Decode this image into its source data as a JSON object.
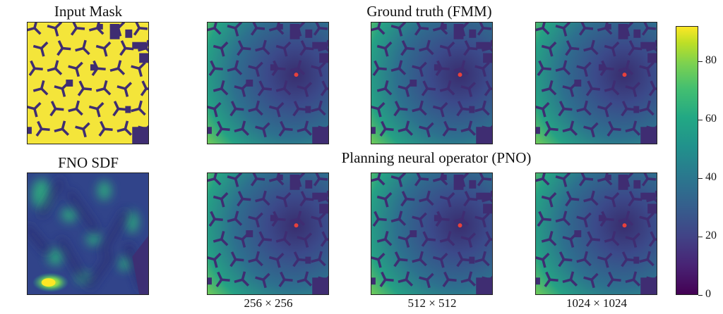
{
  "titles": {
    "input_mask": "Input Mask",
    "ground_truth": "Ground truth (FMM)",
    "fno_sdf": "FNO SDF",
    "pno": "Planning neural operator (PNO)"
  },
  "resolutions": [
    "256 × 256",
    "512 × 512",
    "1024 × 1024"
  ],
  "colorbar": {
    "ticks": [
      "0",
      "20",
      "40",
      "60",
      "80"
    ],
    "tick_values": [
      0,
      20,
      40,
      60,
      80
    ],
    "range": [
      0,
      92
    ],
    "colormap": "viridis"
  },
  "colors": {
    "mask_free": "#f4e53a",
    "obstacle": "#3f2d72",
    "goal": "#e8413c"
  }
}
